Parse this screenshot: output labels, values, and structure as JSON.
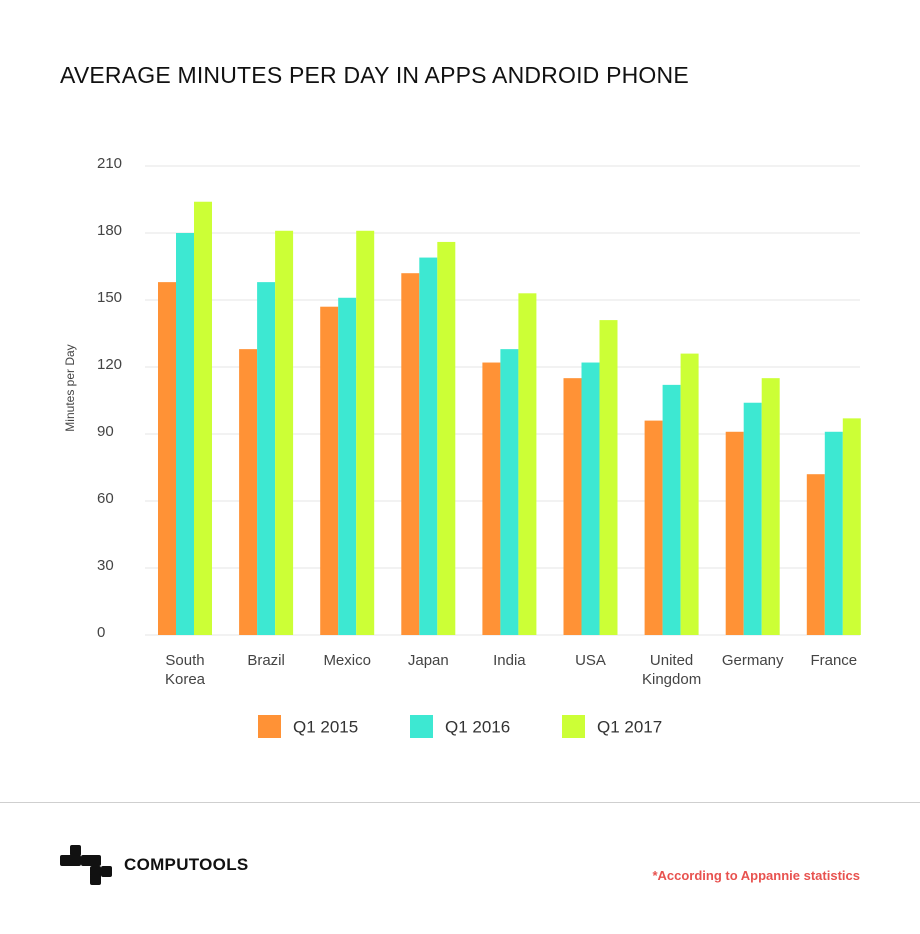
{
  "header": {
    "title": "AVERAGE MINUTES PER DAY IN APPS ANDROID PHONE"
  },
  "chart_data": {
    "type": "bar",
    "title": "AVERAGE MINUTES PER DAY IN APPS ANDROID PHONE",
    "xlabel": "",
    "ylabel": "Minutes per Day",
    "ylim": [
      0,
      210
    ],
    "yticks": [
      0,
      30,
      60,
      90,
      120,
      150,
      180,
      210
    ],
    "grid": true,
    "legend_position": "bottom",
    "categories": [
      [
        "South",
        "Korea"
      ],
      [
        "Brazil"
      ],
      [
        "Mexico"
      ],
      [
        "Japan"
      ],
      [
        "India"
      ],
      [
        "USA"
      ],
      [
        "United",
        "Kingdom"
      ],
      [
        "Germany"
      ],
      [
        "France"
      ]
    ],
    "series": [
      {
        "name": "Q1 2015",
        "color": "#ff9236",
        "values": [
          158,
          128,
          147,
          162,
          122,
          115,
          96,
          91,
          72
        ]
      },
      {
        "name": "Q1 2016",
        "color": "#3de8d2",
        "values": [
          180,
          158,
          151,
          169,
          128,
          122,
          112,
          104,
          91
        ]
      },
      {
        "name": "Q1 2017",
        "color": "#ccff36",
        "values": [
          194,
          181,
          181,
          176,
          153,
          141,
          126,
          115,
          97
        ]
      }
    ],
    "colors": {
      "grid": "#e6e6e6",
      "tick": "#444444"
    }
  },
  "footer": {
    "brand": "COMPUTOOLS",
    "logo_icon": "computools-logo-icon",
    "note": "*According to Appannie statistics",
    "note_color": "#e8524f"
  }
}
